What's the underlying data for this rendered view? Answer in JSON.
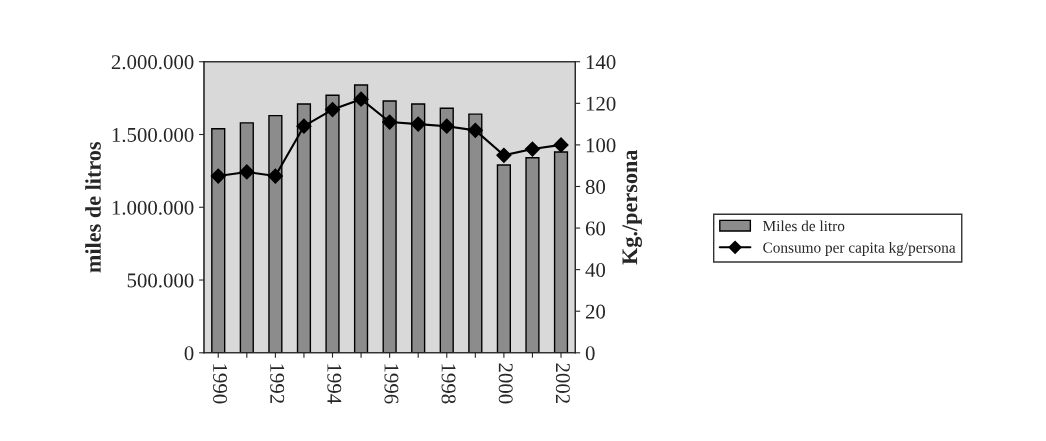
{
  "chart_data": {
    "type": "bar",
    "categories": [
      "1990",
      null,
      "1992",
      null,
      "1994",
      null,
      "1996",
      null,
      "1998",
      null,
      "2000",
      null,
      "2002"
    ],
    "series": [
      {
        "name": "Miles de litro",
        "color": "#8c8c8c",
        "values": [
          1540000,
          1580000,
          1630000,
          1710000,
          1770000,
          1840000,
          1730000,
          1710000,
          1680000,
          1640000,
          1290000,
          1340000,
          1380000
        ]
      },
      {
        "name": "Consumo per capita kg/persona",
        "type": "line",
        "axis": "y2",
        "color": "#000000",
        "marker": "diamond",
        "values": [
          85,
          87,
          85,
          109,
          117,
          122,
          111,
          110,
          109,
          107,
          95,
          98,
          100
        ]
      }
    ],
    "ylabel": "miles de litros",
    "y2label": "Kg./persona",
    "ylim": [
      0,
      2000000
    ],
    "yticks": [
      {
        "value": 0,
        "label": "0"
      },
      {
        "value": 500000,
        "label": "500.000"
      },
      {
        "value": 1000000,
        "label": "1.000.000"
      },
      {
        "value": 1500000,
        "label": "1.500.000"
      },
      {
        "value": 2000000,
        "label": "2.000.000"
      }
    ],
    "y2lim": [
      0,
      140
    ],
    "y2ticks": [
      0,
      20,
      40,
      60,
      80,
      100,
      120,
      140
    ],
    "grid": false,
    "legend": "right"
  }
}
